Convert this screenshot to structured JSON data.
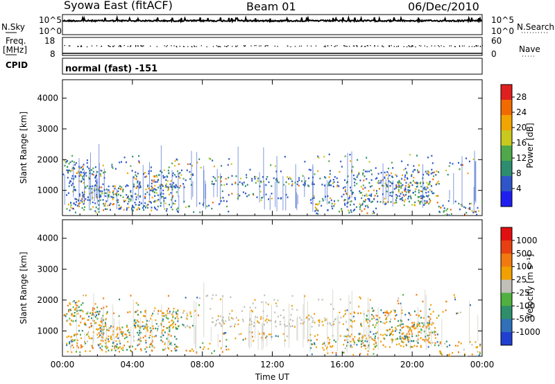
{
  "header": {
    "title": "Syowa East (fitACF)",
    "beam": "Beam 01",
    "date": "06/Dec/2010"
  },
  "panels": {
    "nsky": {
      "label": "N.Sky",
      "tick_top": "10^5",
      "tick_bottom": "10^0"
    },
    "nsearch": {
      "label": "N.Search",
      "tick_top": "10^5",
      "tick_bottom": "10^0"
    },
    "freq": {
      "label_top": "Freq.",
      "label_bottom": "[MHz]",
      "tick_top": "18",
      "tick_bottom": "8"
    },
    "nave": {
      "label": "Nave",
      "tick_top": "60",
      "tick_bottom": "0"
    },
    "cpid": {
      "label": "CPID",
      "value": "normal (fast) -151"
    }
  },
  "chart_data": [
    {
      "type": "heatmap",
      "name": "power",
      "ylabel": "Slant Range [km]",
      "xlabel": "Time UT",
      "x_ticks": [
        "00:00",
        "04:00",
        "08:00",
        "12:00",
        "16:00",
        "20:00",
        "00:00"
      ],
      "x_range_hours": [
        0,
        24
      ],
      "y_ticks": [
        1000,
        2000,
        3000,
        4000
      ],
      "ylim": [
        180,
        4600
      ],
      "colorbar": {
        "label": "Power [dB]",
        "ticks": [
          "4",
          "8",
          "12",
          "16",
          "20",
          "24",
          "28"
        ],
        "range": [
          0,
          30
        ],
        "colors": [
          "#1e1ef0",
          "#2f56c8",
          "#2e8c6f",
          "#4fa84a",
          "#c8c81e",
          "#f2a400",
          "#f06a00",
          "#e0201e"
        ]
      }
    },
    {
      "type": "heatmap",
      "name": "velocity",
      "ylabel": "Slant Range [km]",
      "xlabel": "Time UT",
      "x_ticks": [
        "00:00",
        "04:00",
        "08:00",
        "12:00",
        "16:00",
        "20:00",
        "00:00"
      ],
      "x_range_hours": [
        0,
        24
      ],
      "y_ticks": [
        1000,
        2000,
        3000,
        4000
      ],
      "ylim": [
        180,
        4600
      ],
      "colorbar": {
        "label": "Velocity [m s⁻¹]",
        "ticks": [
          "1000",
          "500",
          "100",
          "25",
          "-25",
          "-100",
          "-500",
          "-1000"
        ],
        "colors": [
          "#2040d0",
          "#2f70b8",
          "#2e8f6a",
          "#50b040",
          "#c0c0b8",
          "#f2a000",
          "#f07a10",
          "#e84010",
          "#e01010"
        ]
      }
    }
  ],
  "colors": {
    "axis": "#000000",
    "background": "#ffffff"
  }
}
